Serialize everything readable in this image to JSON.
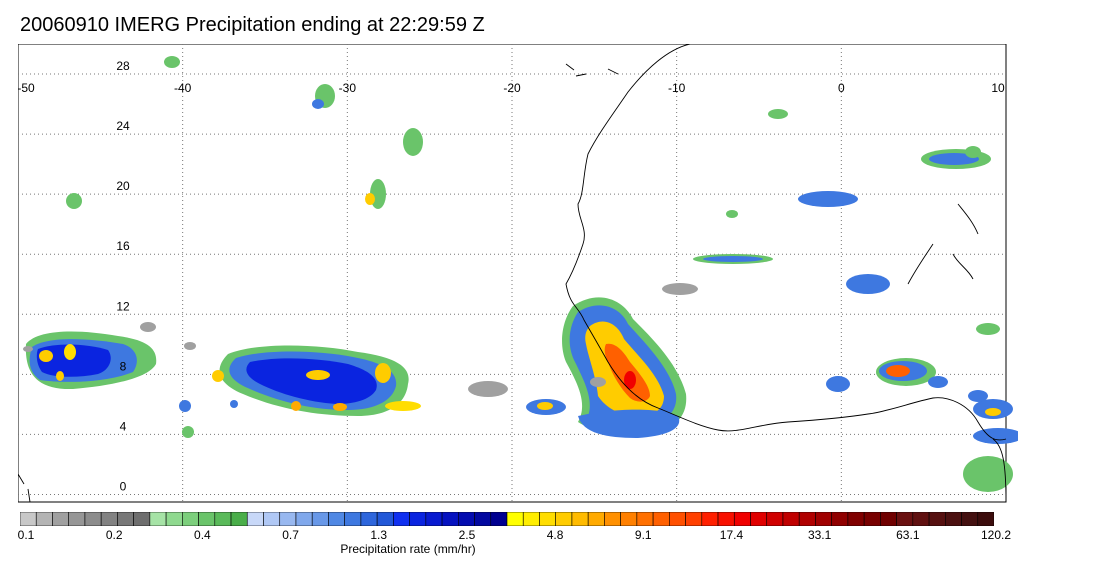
{
  "title": "20060910 IMERG Precipitation ending at 22:29:59 Z",
  "map": {
    "lon_labels": [
      "-50",
      "-40",
      "-30",
      "-20",
      "-10",
      "0",
      "10"
    ],
    "lat_labels": [
      "28",
      "24",
      "20",
      "16",
      "12",
      "8",
      "4",
      "0"
    ],
    "lon_range": [
      -50,
      10
    ],
    "lat_range": [
      -0.5,
      30
    ],
    "grid": true,
    "gridline_style": "dotted"
  },
  "colorbar": {
    "label": "Precipitation rate (mm/hr)",
    "tick_labels": [
      "0.1",
      "0.2",
      "0.4",
      "0.7",
      "1.3",
      "2.5",
      "4.8",
      "9.1",
      "17.4",
      "33.1",
      "63.1",
      "120.2"
    ],
    "segment_colors": [
      "#c8c8c8",
      "#b4b4b4",
      "#a0a0a0",
      "#969696",
      "#8c8c8c",
      "#828282",
      "#787878",
      "#6e6e6e",
      "#a6e3a6",
      "#8fd98f",
      "#7ccf7c",
      "#6ac46a",
      "#5aba5a",
      "#4aae4a",
      "#c8d8f8",
      "#b0c8f5",
      "#98b8f0",
      "#80a8ec",
      "#6898e8",
      "#5088e4",
      "#3e78e0",
      "#2e66dc",
      "#2258d8",
      "#1030f0",
      "#0a24e0",
      "#081ad0",
      "#0612c0",
      "#040cb0",
      "#0208a0",
      "#000090",
      "#ffff00",
      "#ffee00",
      "#ffdd00",
      "#ffcc00",
      "#ffbb00",
      "#ffaa00",
      "#ff9000",
      "#ff8000",
      "#ff7000",
      "#ff6000",
      "#ff5000",
      "#ff4000",
      "#ff2000",
      "#f81000",
      "#f00000",
      "#e00000",
      "#d00000",
      "#c00000",
      "#b00000",
      "#a00000",
      "#900000",
      "#800000",
      "#780000",
      "#700000",
      "#6a1010",
      "#601010",
      "#561010",
      "#4c1010",
      "#441010",
      "#3c0c0c"
    ]
  }
}
